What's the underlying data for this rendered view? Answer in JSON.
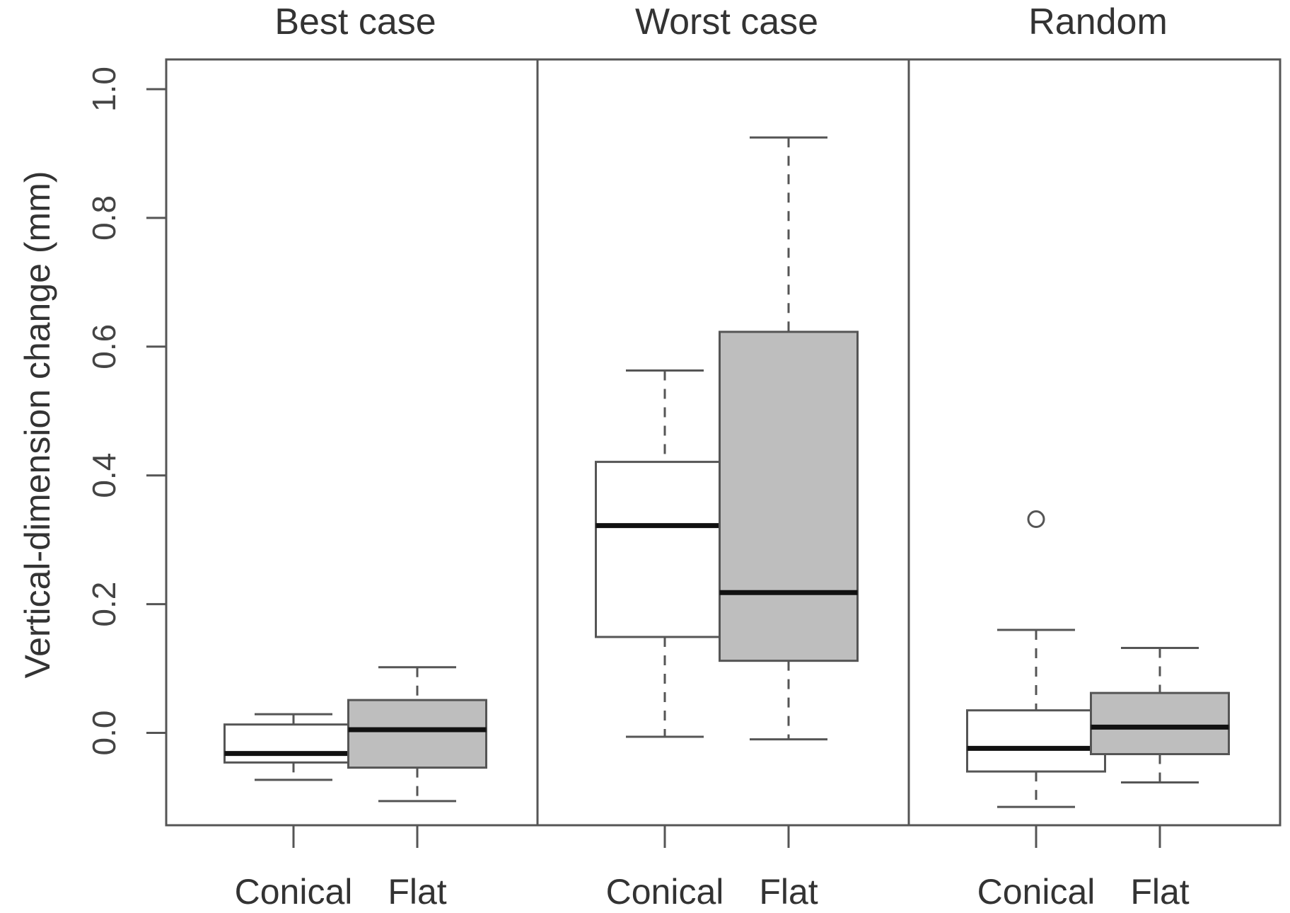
{
  "chart_data": {
    "type": "boxplot",
    "ylabel": "Vertical-dimension change (mm)",
    "ylim": [
      -0.145,
      1.1
    ],
    "yticks": [
      "0.0",
      "0.2",
      "0.4",
      "0.6",
      "0.8",
      "1.0"
    ],
    "grid": false,
    "legend": "none",
    "colors": {
      "Conical": "#ffffff",
      "Flat": "#bebebe",
      "median": "#111111",
      "outline": "#555555"
    },
    "panels": [
      {
        "title": "Best case",
        "boxes": [
          {
            "label": "Conical",
            "whisker_low": -0.073,
            "q1": -0.046,
            "median": -0.032,
            "q3": 0.013,
            "whisker_high": 0.029,
            "outliers": []
          },
          {
            "label": "Flat",
            "whisker_low": -0.106,
            "q1": -0.054,
            "median": 0.005,
            "q3": 0.051,
            "whisker_high": 0.102,
            "outliers": []
          }
        ]
      },
      {
        "title": "Worst case",
        "boxes": [
          {
            "label": "Conical",
            "whisker_low": -0.006,
            "q1": 0.149,
            "median": 0.322,
            "q3": 0.421,
            "whisker_high": 0.563,
            "outliers": []
          },
          {
            "label": "Flat",
            "whisker_low": -0.01,
            "q1": 0.112,
            "median": 0.218,
            "q3": 0.623,
            "whisker_high": 0.925,
            "outliers": []
          }
        ]
      },
      {
        "title": "Random",
        "boxes": [
          {
            "label": "Conical",
            "whisker_low": -0.115,
            "q1": -0.06,
            "median": -0.024,
            "q3": 0.035,
            "whisker_high": 0.16,
            "outliers": [
              0.332
            ]
          },
          {
            "label": "Flat",
            "whisker_low": -0.077,
            "q1": -0.033,
            "median": 0.009,
            "q3": 0.062,
            "whisker_high": 0.132,
            "outliers": []
          }
        ]
      }
    ]
  }
}
